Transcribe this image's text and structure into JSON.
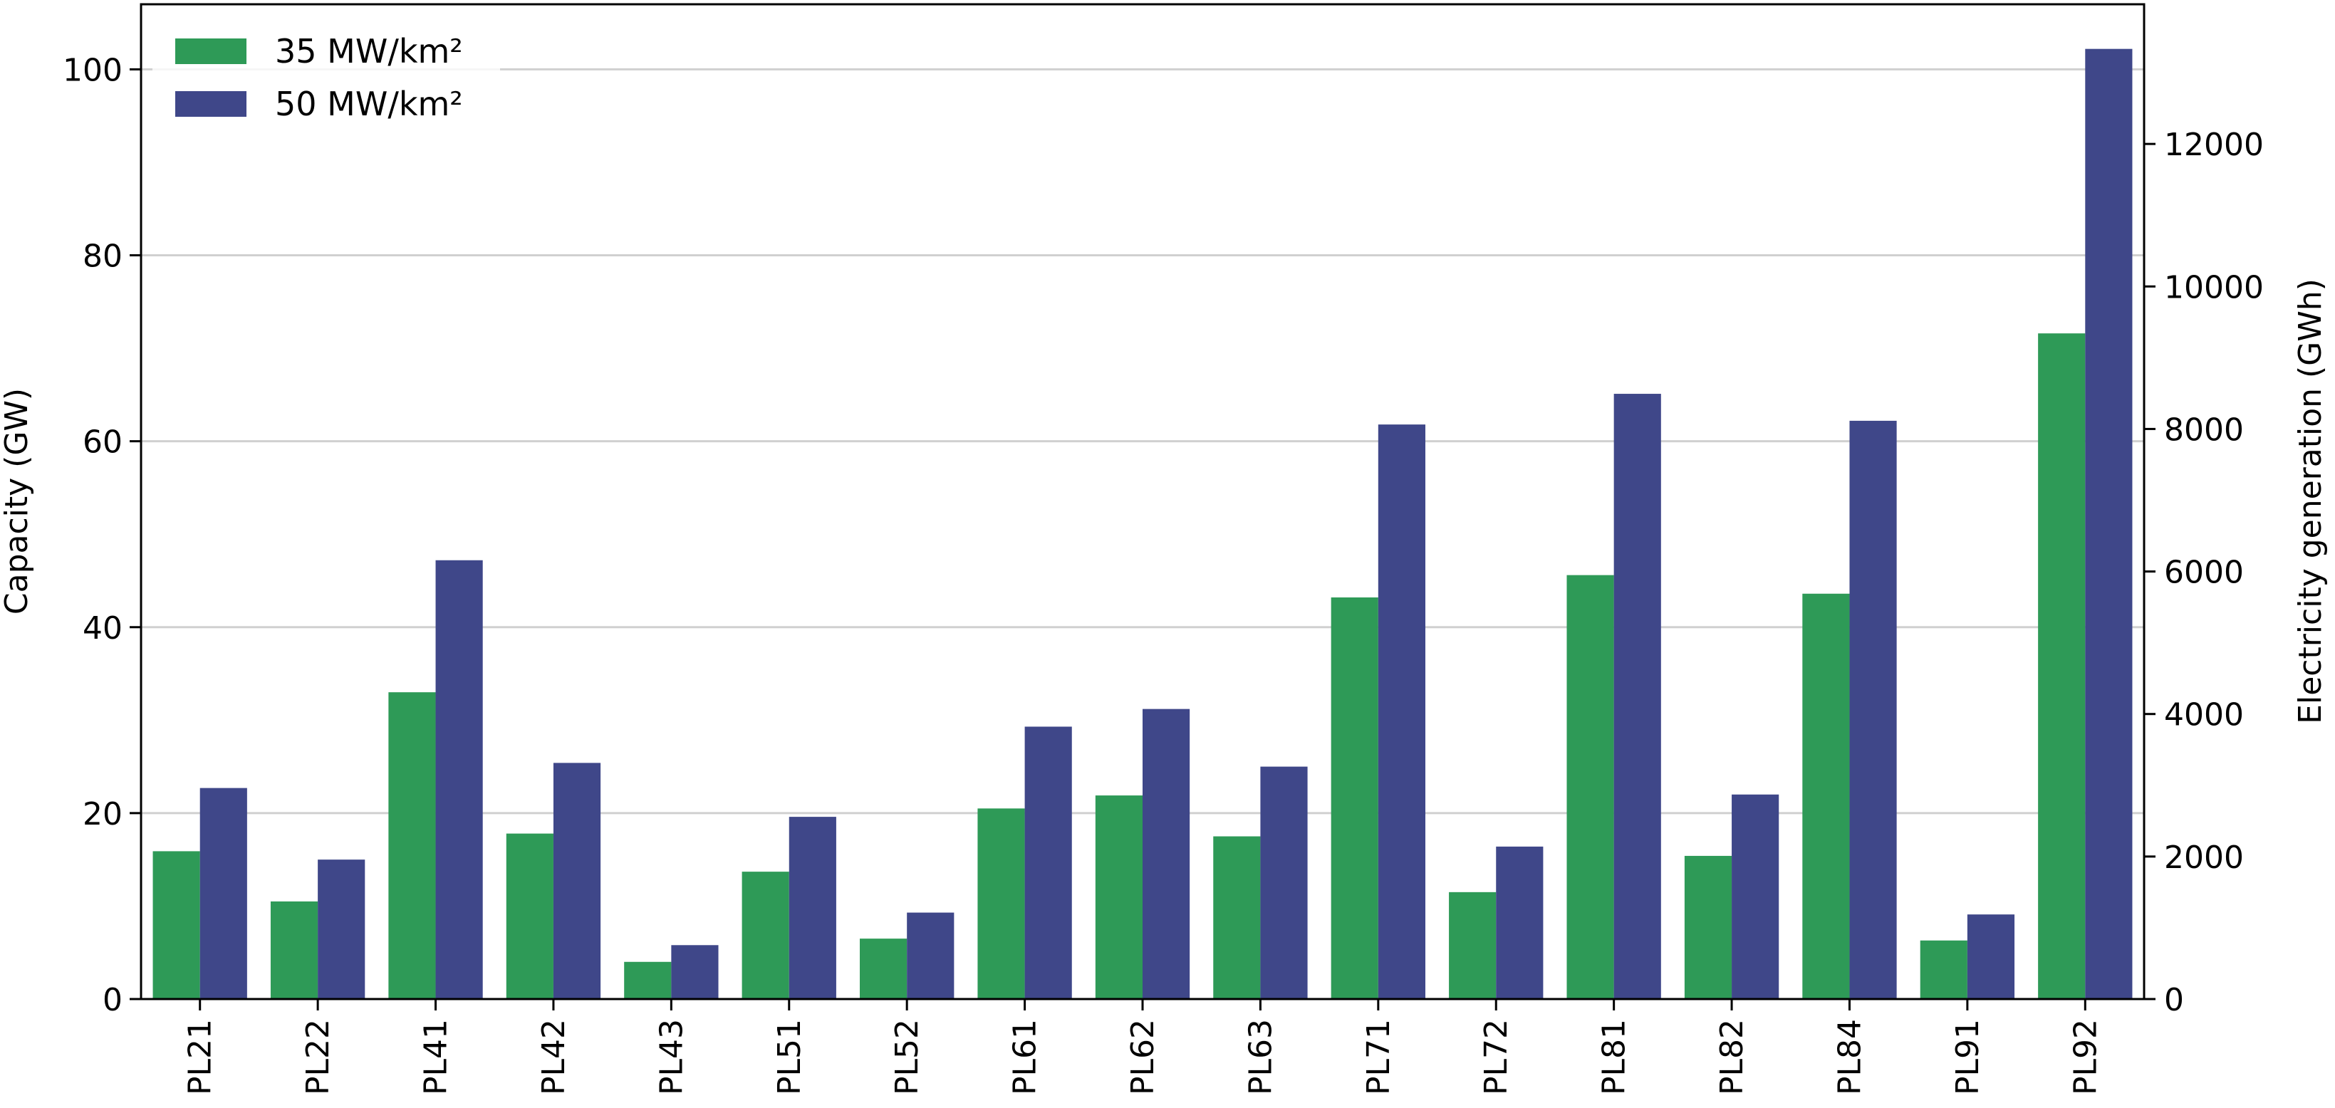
{
  "chart_data": {
    "type": "bar",
    "categories": [
      "PL21",
      "PL22",
      "PL41",
      "PL42",
      "PL43",
      "PL51",
      "PL52",
      "PL61",
      "PL62",
      "PL63",
      "PL71",
      "PL72",
      "PL81",
      "PL82",
      "PL84",
      "PL91",
      "PL92"
    ],
    "series": [
      {
        "name": "35 MW/km²",
        "color": "#2e9a57",
        "values": [
          15.9,
          10.5,
          33.0,
          17.8,
          4.0,
          13.7,
          6.5,
          20.5,
          21.9,
          17.5,
          43.2,
          11.5,
          45.6,
          15.4,
          43.6,
          6.3,
          71.6
        ]
      },
      {
        "name": "50 MW/km²",
        "color": "#3f4789",
        "values": [
          22.7,
          15.0,
          47.2,
          25.4,
          5.8,
          19.6,
          9.3,
          29.3,
          31.2,
          25.0,
          61.8,
          16.4,
          65.1,
          22.0,
          62.2,
          9.1,
          102.2
        ]
      }
    ],
    "ylabel": "Capacity (GW)",
    "ylabel_right": "Electricity generation (GWh)",
    "ylim": [
      0,
      107
    ],
    "y_ticks": [
      0,
      20,
      40,
      60,
      80,
      100
    ],
    "y2lim": [
      0,
      13960
    ],
    "y2_ticks": [
      0,
      2000,
      4000,
      6000,
      8000,
      10000,
      12000
    ],
    "grid": "horizontal",
    "legend_position": "top-left"
  }
}
